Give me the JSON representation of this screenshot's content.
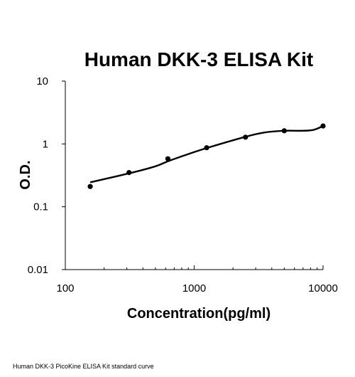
{
  "chart_data": {
    "type": "scatter",
    "title": "Human DKK-3 ELISA Kit",
    "xlabel": "Concentration(pg/ml)",
    "ylabel": "O.D.",
    "x_scale": "log",
    "y_scale": "log",
    "xlim": [
      100,
      10000
    ],
    "ylim": [
      0.01,
      10
    ],
    "x_ticks": [
      100,
      1000,
      10000
    ],
    "x_tick_labels": [
      "100",
      "1000",
      "10000"
    ],
    "y_ticks": [
      0.01,
      0.1,
      1,
      10
    ],
    "y_tick_labels": [
      "0.01",
      "0.1",
      "1",
      "10"
    ],
    "grid": false,
    "legend": false,
    "series": [
      {
        "points": [
          {
            "x": 156,
            "y": 0.21
          },
          {
            "x": 312,
            "y": 0.35
          },
          {
            "x": 625,
            "y": 0.58
          },
          {
            "x": 1250,
            "y": 0.87
          },
          {
            "x": 2500,
            "y": 1.28
          },
          {
            "x": 5000,
            "y": 1.62
          },
          {
            "x": 10000,
            "y": 1.93
          }
        ],
        "fit_curve": [
          {
            "x": 156,
            "y": 0.245
          },
          {
            "x": 312,
            "y": 0.34
          },
          {
            "x": 500,
            "y": 0.44
          },
          {
            "x": 625,
            "y": 0.53
          },
          {
            "x": 900,
            "y": 0.69
          },
          {
            "x": 1250,
            "y": 0.86
          },
          {
            "x": 2500,
            "y": 1.3
          },
          {
            "x": 3500,
            "y": 1.52
          },
          {
            "x": 5000,
            "y": 1.62
          },
          {
            "x": 7000,
            "y": 1.62
          },
          {
            "x": 8500,
            "y": 1.68
          },
          {
            "x": 10000,
            "y": 1.93
          }
        ]
      }
    ]
  },
  "caption": "Human DKK-3 PicoKine ELISA Kit standard curve"
}
